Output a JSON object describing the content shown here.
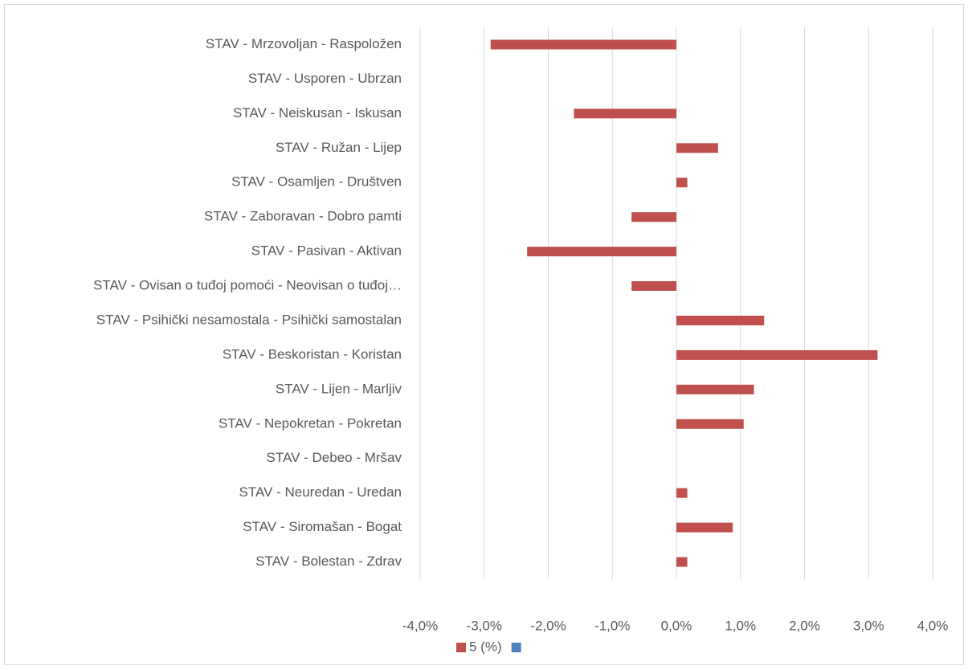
{
  "chart_data": {
    "type": "bar",
    "orientation": "horizontal",
    "categories": [
      "STAV - Mrzovoljan - Raspoložen",
      "STAV - Usporen - Ubrzan",
      "STAV - Neiskusan - Iskusan",
      "STAV - Ružan - Lijep",
      "STAV - Osamljen - Društven",
      "STAV - Zaboravan - Dobro pamti",
      "STAV - Pasivan - Aktivan",
      "STAV - Ovisan o tuđoj pomoći - Neovisan o tuđoj…",
      "STAV - Psihički nesamostala - Psihički samostalan",
      "STAV - Beskoristan - Koristan",
      "STAV - Lijen - Marljiv",
      "STAV - Nepokretan - Pokretan",
      "STAV - Debeo - Mršav",
      "STAV - Neuredan - Uredan",
      "STAV - Siromašan - Bogat",
      "STAV - Bolestan - Zdrav"
    ],
    "series": [
      {
        "name": "5 (%)",
        "color": "#c0504d",
        "values": [
          -2.9,
          0,
          -1.6,
          0.65,
          0.17,
          -0.7,
          -2.33,
          -0.7,
          1.37,
          3.14,
          1.21,
          1.05,
          0,
          0.17,
          0.88,
          0.17
        ]
      },
      {
        "name": null,
        "color": "#4f81bd",
        "values": [
          null,
          null,
          null,
          null,
          null,
          null,
          null,
          null,
          null,
          null,
          null,
          null,
          null,
          null,
          null,
          null
        ]
      }
    ],
    "xlim": [
      -4,
      4
    ],
    "xticks": [
      {
        "value": -4,
        "label": "-4,0%"
      },
      {
        "value": -3,
        "label": "-3,0%"
      },
      {
        "value": -2,
        "label": "-2,0%"
      },
      {
        "value": -1,
        "label": "-1,0%"
      },
      {
        "value": 0,
        "label": "0,0%"
      },
      {
        "value": 1,
        "label": "1,0%"
      },
      {
        "value": 2,
        "label": "2,0%"
      },
      {
        "value": 3,
        "label": "3,0%"
      },
      {
        "value": 4,
        "label": "4,0%"
      }
    ],
    "grid": true,
    "legend": "bottom"
  }
}
